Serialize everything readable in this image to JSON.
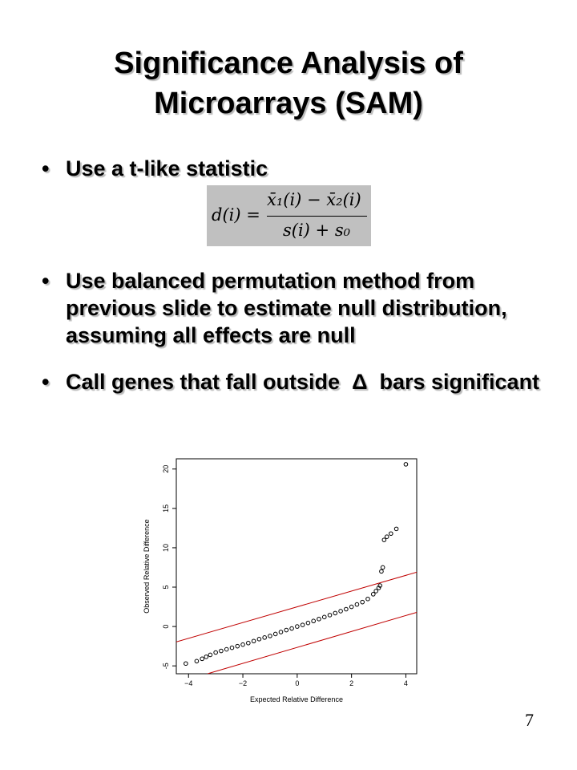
{
  "slide": {
    "title_line1": "Significance Analysis of",
    "title_line2": "Microarrays (SAM)",
    "bullets": [
      "Use a t-like statistic",
      "Use balanced permutation method from previous slide to estimate null distribution, assuming all effects are null"
    ],
    "bullet3_before": "Call genes that fall outside",
    "bullet3_symbol": "Δ",
    "bullet3_after": "bars significant",
    "formula_lhs": "d(i) =",
    "formula_numerator": "x̄₁(i) − x̄₂(i)",
    "formula_denominator": "s(i) + s₀",
    "page_number": "7"
  },
  "chart_data": {
    "type": "scatter",
    "xlabel": "Expected Relative Difference",
    "ylabel": "Observed Relative Difference",
    "x": [
      -4.1,
      -3.7,
      -3.5,
      -3.35,
      -3.2,
      -3.0,
      -2.8,
      -2.6,
      -2.4,
      -2.2,
      -2.0,
      -1.8,
      -1.6,
      -1.4,
      -1.2,
      -1.0,
      -0.8,
      -0.6,
      -0.4,
      -0.2,
      0,
      0.2,
      0.4,
      0.6,
      0.8,
      1.0,
      1.2,
      1.4,
      1.6,
      1.8,
      2.0,
      2.2,
      2.4,
      2.6,
      2.8,
      2.9,
      3.0,
      3.05,
      3.1,
      3.15,
      3.2,
      3.3,
      3.45,
      3.65,
      4.0
    ],
    "y": [
      -4.7,
      -4.4,
      -4.1,
      -3.85,
      -3.6,
      -3.3,
      -3.1,
      -2.9,
      -2.7,
      -2.5,
      -2.3,
      -2.1,
      -1.85,
      -1.6,
      -1.4,
      -1.2,
      -0.95,
      -0.7,
      -0.45,
      -0.25,
      0,
      0.2,
      0.45,
      0.7,
      0.95,
      1.2,
      1.45,
      1.7,
      1.95,
      2.2,
      2.5,
      2.8,
      3.1,
      3.5,
      4.1,
      4.5,
      4.9,
      5.2,
      7.0,
      7.5,
      11.0,
      11.4,
      11.8,
      12.4,
      20.6
    ],
    "color": "#000000",
    "lines": [
      {
        "x": [
          -4.45,
          4.4
        ],
        "y": [
          -1.95,
          6.9
        ],
        "color": "#c00000"
      },
      {
        "x": [
          -3.3,
          4.4
        ],
        "y": [
          -6,
          1.8
        ],
        "color": "#c00000"
      }
    ],
    "xlim": [
      -4.45,
      4.4
    ],
    "ylim": [
      -6,
      21.3
    ],
    "xticks": [
      {
        "value": -4,
        "label": "−4"
      },
      {
        "value": -2,
        "label": "−2"
      },
      0,
      2,
      4
    ],
    "yticks": [
      -5,
      0,
      5,
      10,
      15,
      20
    ]
  }
}
